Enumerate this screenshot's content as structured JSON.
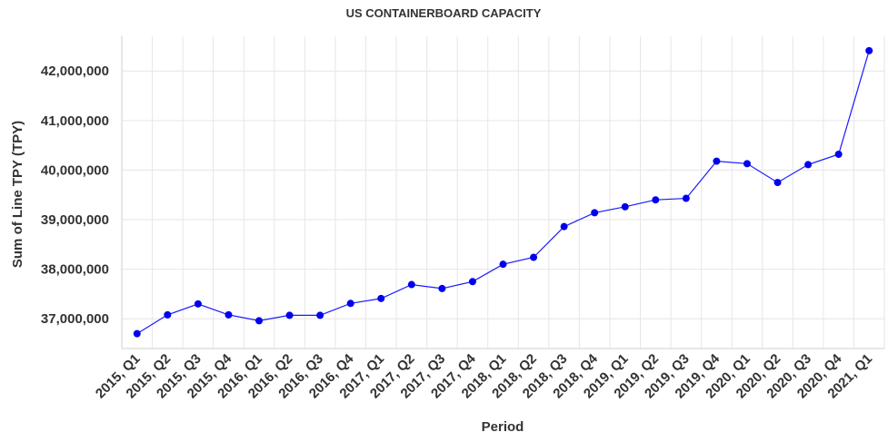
{
  "chart_data": {
    "type": "line",
    "title": "US CONTAINERBOARD CAPACITY",
    "xlabel": "Period",
    "ylabel": "Sum of Line TPY (TPY)",
    "ylim": [
      36400000,
      42700000
    ],
    "yticks": [
      37000000,
      38000000,
      39000000,
      40000000,
      41000000,
      42000000
    ],
    "ytick_labels": [
      "37,000,000",
      "38,000,000",
      "39,000,000",
      "40,000,000",
      "41,000,000",
      "42,000,000"
    ],
    "grid": true,
    "legend": "none",
    "colors": {
      "line": "#1a1aff",
      "point": "#0000ee"
    },
    "categories": [
      "2015, Q1",
      "2015, Q2",
      "2015, Q3",
      "2015, Q4",
      "2016, Q1",
      "2016, Q2",
      "2016, Q3",
      "2016, Q4",
      "2017, Q1",
      "2017, Q2",
      "2017, Q3",
      "2017, Q4",
      "2018, Q1",
      "2018, Q2",
      "2018, Q3",
      "2018, Q4",
      "2019, Q1",
      "2019, Q2",
      "2019, Q3",
      "2019, Q4",
      "2020, Q1",
      "2020, Q2",
      "2020, Q3",
      "2020, Q4",
      "2021, Q1"
    ],
    "series": [
      {
        "values": [
          36700000,
          37080000,
          37300000,
          37080000,
          36960000,
          37070000,
          37070000,
          37310000,
          37410000,
          37690000,
          37610000,
          37750000,
          38100000,
          38240000,
          38860000,
          39140000,
          39260000,
          39400000,
          39430000,
          40180000,
          40130000,
          39750000,
          40110000,
          40320000,
          42410000
        ]
      }
    ]
  }
}
